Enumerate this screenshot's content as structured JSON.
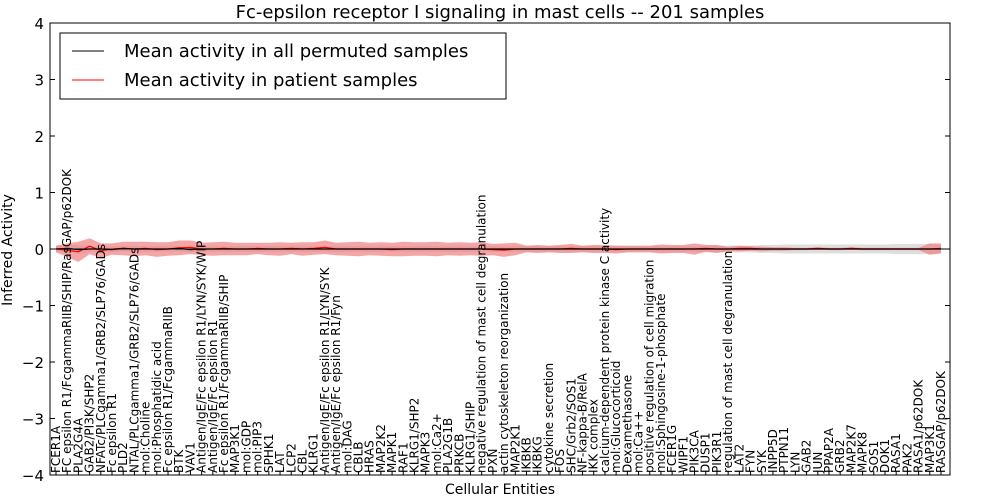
{
  "chart_data": {
    "type": "line",
    "title": "Fc-epsilon receptor I signaling in mast cells -- 201 samples",
    "xlabel": "Cellular Entities",
    "ylabel": "Inferred Activity",
    "ylim": [
      -4,
      4
    ],
    "yticks": [
      -4,
      -3,
      -2,
      -1,
      0,
      1,
      2,
      3,
      4
    ],
    "legend_position": "top-left",
    "categories": [
      "FCER1A",
      "FC epsilon R1/FcgammaRIIB/SHIP/RasGAP/p62DOK",
      "PLA2G4A",
      "GAB2/PI3K/SHP2",
      "NFATc/PLCgamma1/GRB2/SLP76/GADs",
      "Fc epsilon R1",
      "PLD2",
      "NTAL/PLCgamma1/GRB2/SLP76/GADs",
      "mol:Choline",
      "mol:Phosphatidic acid",
      "Fc epsilon R1/FcgammaRIIB",
      "BTK",
      "VAV1",
      "Antigen/IgE/Fc epsilon R1/LYN/SYK/WIP",
      "Antigen/IgE/Fc epsilon R1",
      "Fc epsilon R1/FcgammaRIIB/SHIP",
      "MAP3K1",
      "mol:GDP",
      "mol:PIP3",
      "SPHK1",
      "LAT",
      "LCP2",
      "CBL",
      "KLRG1",
      "Antigen/IgE/Fc epsilon R1/LYN/SYK",
      "Antigen/IgE/Fc epsilon R1/Fyn",
      "mol:DAG",
      "CBLB",
      "HRAS",
      "MAP2K2",
      "MAPK1",
      "RAF1",
      "KLRG1/SHP2",
      "MAPK3",
      "mol:Ca2+",
      "PLA2G1B",
      "PRKCB",
      "KLRG1/SHIP",
      "negative regulation of mast cell degranulation",
      "PXN",
      "actin cytoskeleton reorganization",
      "MAP2K1",
      "IKBKB",
      "IKBKG",
      "cytokine secretion",
      "FOS",
      "SHC/Grb2/SOS1",
      "NF-kappa-B/RelA",
      "IKK complex",
      "calcium-dependent protein kinase C activity",
      "mol:Glucocorticoid",
      "Dexamethasone",
      "mol:Ca++",
      "positive regulation of cell migration",
      "mol:Sphingosine-1-phosphate",
      "FCER1G",
      "WIPF1",
      "PIK3CA",
      "DUSP1",
      "PIK3R1",
      "regulation of mast cell degranulation",
      "LAT2",
      "FYN",
      "SYK",
      "INPP5D",
      "PTPN11",
      "LYN",
      "GAB2",
      "JUN",
      "PPAP2A",
      "GRB2",
      "MAP2K7",
      "MAPK8",
      "SOS1",
      "DOK1",
      "RASA1",
      "PAK2",
      "RASA1/p62DOK",
      "MAP3K1",
      "RASGAP/p62DOK"
    ],
    "series": [
      {
        "name": "Mean activity in all permuted samples",
        "color": "#000000",
        "values": [
          0.0,
          0.01,
          -0.01,
          0.0,
          0.0,
          -0.01,
          0.01,
          0.0,
          0.0,
          0.0,
          0.0,
          0.01,
          -0.01,
          0.0,
          0.0,
          0.0,
          0.0,
          0.0,
          0.0,
          0.0,
          0.0,
          0.0,
          0.0,
          0.0,
          0.0,
          0.0,
          0.0,
          0.0,
          0.0,
          0.0,
          0.0,
          0.0,
          0.0,
          0.0,
          0.0,
          0.0,
          0.0,
          0.0,
          0.0,
          0.0,
          0.0,
          0.0,
          0.0,
          0.0,
          0.0,
          0.0,
          0.0,
          0.0,
          0.0,
          0.0,
          0.0,
          0.0,
          0.0,
          0.0,
          0.0,
          0.0,
          0.0,
          0.0,
          0.0,
          0.0,
          0.0,
          0.0,
          0.0,
          0.0,
          0.0,
          0.0,
          0.0,
          0.0,
          0.0,
          0.0,
          0.0,
          0.0,
          0.0,
          0.0,
          0.0,
          0.0,
          0.0,
          0.0,
          0.0,
          0.0
        ],
        "band": [
          0.06,
          0.06,
          0.08,
          0.05,
          0.05,
          0.05,
          0.05,
          0.05,
          0.05,
          0.05,
          0.05,
          0.05,
          0.05,
          0.05,
          0.05,
          0.05,
          0.05,
          0.05,
          0.05,
          0.05,
          0.05,
          0.05,
          0.05,
          0.05,
          0.05,
          0.05,
          0.05,
          0.05,
          0.05,
          0.05,
          0.05,
          0.05,
          0.05,
          0.05,
          0.05,
          0.05,
          0.05,
          0.05,
          0.05,
          0.05,
          0.05,
          0.05,
          0.05,
          0.05,
          0.05,
          0.05,
          0.05,
          0.05,
          0.05,
          0.05,
          0.05,
          0.05,
          0.05,
          0.05,
          0.05,
          0.05,
          0.05,
          0.05,
          0.06,
          0.06,
          0.06,
          0.06,
          0.06,
          0.07,
          0.07,
          0.08,
          0.08,
          0.08,
          0.08,
          0.08,
          0.08,
          0.08,
          0.08,
          0.08,
          0.08,
          0.09,
          0.09,
          0.09,
          0.09,
          0.07
        ]
      },
      {
        "name": "Mean activity in patient samples",
        "color": "#ff0000",
        "values": [
          0.0,
          -0.02,
          -0.05,
          0.05,
          -0.03,
          0.0,
          0.01,
          0.0,
          0.01,
          -0.01,
          0.0,
          0.02,
          0.03,
          0.0,
          0.0,
          0.01,
          0.0,
          0.0,
          0.01,
          0.0,
          0.0,
          0.01,
          0.0,
          0.01,
          0.03,
          0.0,
          0.0,
          0.0,
          0.0,
          0.0,
          -0.01,
          0.0,
          0.0,
          0.0,
          0.0,
          0.0,
          0.0,
          0.0,
          0.0,
          -0.01,
          -0.02,
          0.0,
          0.0,
          0.0,
          0.0,
          0.0,
          0.01,
          0.0,
          0.0,
          0.0,
          -0.01,
          0.0,
          0.0,
          0.0,
          0.0,
          0.0,
          0.0,
          0.0,
          0.01,
          0.0,
          0.0,
          0.01,
          0.01,
          0.0,
          0.0,
          0.0,
          0.0,
          0.0,
          0.01,
          0.0,
          0.0,
          0.01,
          0.0,
          0.0,
          0.0,
          0.0,
          0.0,
          0.0,
          0.0,
          0.01
        ],
        "band": [
          0.06,
          0.12,
          0.18,
          0.14,
          0.13,
          0.1,
          0.12,
          0.13,
          0.12,
          0.13,
          0.12,
          0.13,
          0.12,
          0.11,
          0.12,
          0.12,
          0.11,
          0.11,
          0.1,
          0.11,
          0.12,
          0.1,
          0.12,
          0.11,
          0.12,
          0.11,
          0.12,
          0.13,
          0.11,
          0.12,
          0.12,
          0.13,
          0.12,
          0.12,
          0.13,
          0.11,
          0.12,
          0.11,
          0.12,
          0.1,
          0.12,
          0.11,
          0.06,
          0.07,
          0.06,
          0.07,
          0.08,
          0.06,
          0.07,
          0.07,
          0.07,
          0.06,
          0.06,
          0.06,
          0.08,
          0.07,
          0.07,
          0.1,
          0.06,
          0.07,
          0.04,
          0.05,
          0.04,
          0.04,
          0.03,
          0.03,
          0.02,
          0.02,
          0.02,
          0.02,
          0.02,
          0.02,
          0.02,
          0.02,
          0.02,
          0.02,
          0.02,
          0.02,
          0.1,
          0.09
        ]
      }
    ]
  }
}
